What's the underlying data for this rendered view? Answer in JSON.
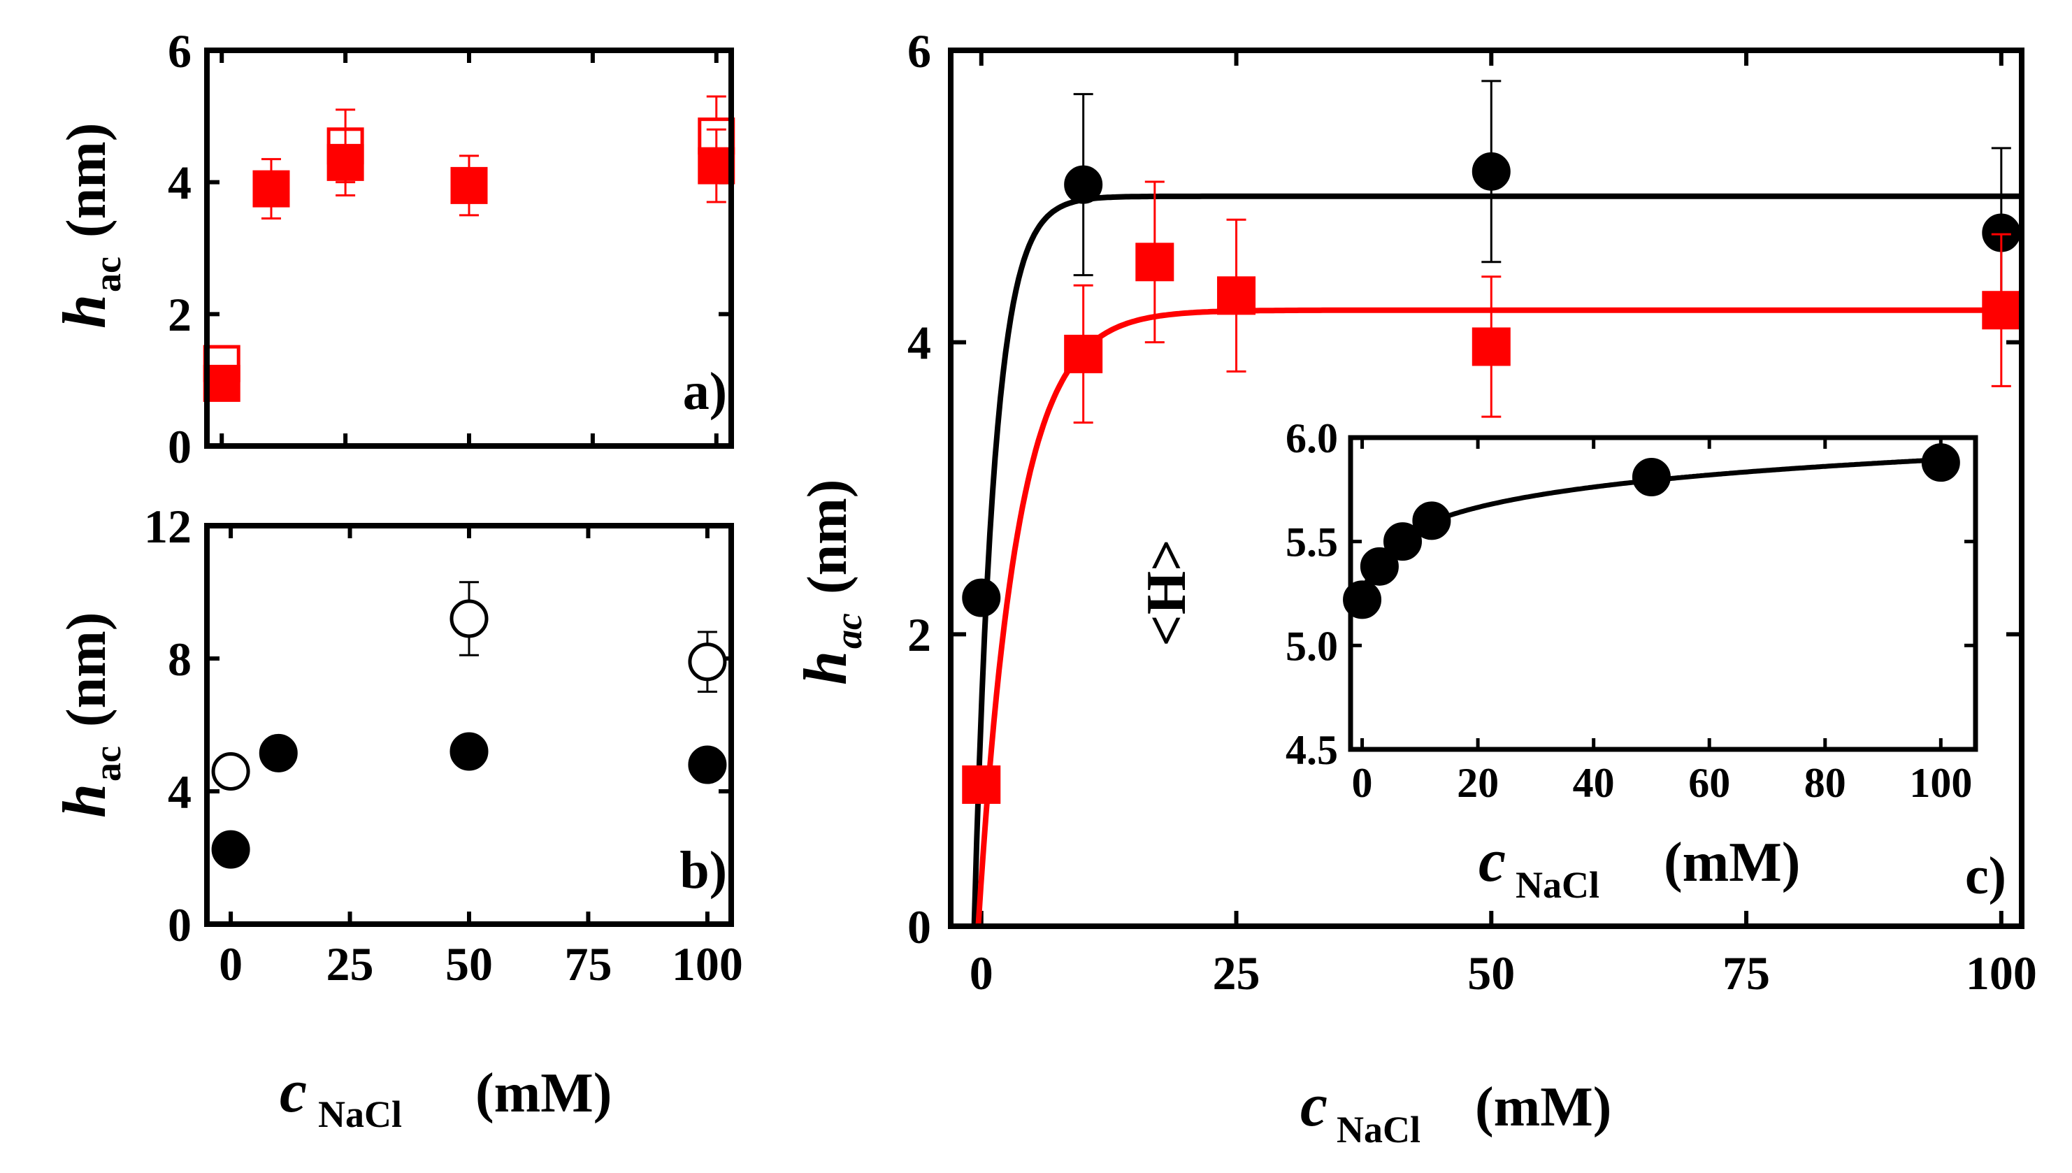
{
  "chart_data": [
    {
      "panel": "a",
      "type": "scatter",
      "panel_label": "a)",
      "ylabel_main": "h",
      "ylabel_sub": "ac",
      "ylabel_unit": "(nm)",
      "xlabel": "",
      "xlim": [
        -3,
        103
      ],
      "ylim": [
        0,
        6
      ],
      "yticks": [
        0,
        2,
        4,
        6
      ],
      "xticks": [
        0,
        25,
        50,
        75,
        100
      ],
      "show_xtick_labels": false,
      "series": [
        {
          "name": "open red squares",
          "marker": "square",
          "filled": false,
          "color": "#ff0000",
          "x": [
            0,
            25,
            100
          ],
          "y": [
            1.25,
            4.55,
            4.7
          ],
          "err": [
            0.25,
            0.55,
            0.6
          ]
        },
        {
          "name": "filled red squares",
          "marker": "square",
          "filled": true,
          "color": "#ff0000",
          "x": [
            0,
            10,
            25,
            50,
            100
          ],
          "y": [
            0.95,
            3.9,
            4.3,
            3.95,
            4.25
          ],
          "err": [
            0.0,
            0.45,
            0.5,
            0.45,
            0.55
          ]
        }
      ]
    },
    {
      "panel": "b",
      "type": "scatter",
      "panel_label": "b)",
      "ylabel_main": "h",
      "ylabel_sub": "ac",
      "ylabel_unit": "(nm)",
      "xlabel_main": "c",
      "xlabel_sub": "NaCl",
      "xlabel_unit": "(mM)",
      "xlim": [
        -5,
        105
      ],
      "ylim": [
        0,
        12
      ],
      "yticks": [
        0,
        4,
        8,
        12
      ],
      "xticks": [
        0,
        25,
        50,
        75,
        100
      ],
      "show_xtick_labels": true,
      "series": [
        {
          "name": "open black circles",
          "marker": "circle",
          "filled": false,
          "color": "#000000",
          "x": [
            0,
            50,
            100
          ],
          "y": [
            4.6,
            9.2,
            7.9
          ],
          "err": [
            0.3,
            1.1,
            0.9
          ]
        },
        {
          "name": "filled black circles",
          "marker": "circle",
          "filled": true,
          "color": "#000000",
          "x": [
            0,
            10,
            50,
            100
          ],
          "y": [
            2.25,
            5.15,
            5.2,
            4.8
          ],
          "err": [
            0.0,
            0.3,
            0.45,
            0.25
          ]
        }
      ]
    },
    {
      "panel": "c",
      "type": "scatter",
      "panel_label": "c)",
      "ylabel_main": "h",
      "ylabel_sub": "ac",
      "ylabel_unit": "(nm)",
      "xlabel_main": "c",
      "xlabel_sub": "NaCl",
      "xlabel_unit": "(mM)",
      "xlim": [
        -3,
        102
      ],
      "ylim": [
        0,
        6
      ],
      "yticks": [
        0,
        2,
        4,
        6
      ],
      "xticks": [
        0,
        25,
        50,
        75,
        100
      ],
      "series": [
        {
          "name": "black circles",
          "marker": "circle",
          "filled": true,
          "color": "#000000",
          "x": [
            0,
            10,
            50,
            100
          ],
          "y": [
            2.25,
            5.08,
            5.17,
            4.75
          ],
          "err": [
            0.0,
            0.62,
            0.62,
            0.58
          ]
        },
        {
          "name": "red squares",
          "marker": "square",
          "filled": true,
          "color": "#ff0000",
          "x": [
            0,
            10,
            17,
            25,
            50,
            100
          ],
          "y": [
            0.97,
            3.92,
            4.55,
            4.32,
            3.97,
            4.22
          ],
          "err": [
            0.0,
            0.47,
            0.55,
            0.52,
            0.48,
            0.52
          ]
        }
      ],
      "fits": [
        {
          "name": "black fit",
          "color": "#000000",
          "plateau": 5.0,
          "x0": -0.7,
          "tau": 2.0
        },
        {
          "name": "red fit",
          "color": "#ff0000",
          "plateau": 4.22,
          "x0": -0.3,
          "tau": 3.8
        }
      ],
      "inset": {
        "type": "scatter",
        "ylabel": "<H>",
        "xlabel_main": "c",
        "xlabel_sub": "NaCl",
        "xlabel_unit": "(mM)",
        "xlim": [
          -2,
          106
        ],
        "ylim": [
          4.5,
          6.0
        ],
        "yticks": [
          4.5,
          5.0,
          5.5,
          6.0
        ],
        "ytick_labels": [
          "4.5",
          "5.0",
          "5.5",
          "6.0"
        ],
        "xticks": [
          0,
          20,
          40,
          60,
          80,
          100
        ],
        "series": [
          {
            "name": "black circles",
            "marker": "circle",
            "filled": true,
            "color": "#000000",
            "x": [
              0,
              3,
              7,
              12,
              50,
              100
            ],
            "y": [
              5.22,
              5.38,
              5.5,
              5.6,
              5.81,
              5.88
            ]
          }
        ],
        "fit": {
          "name": "log fit",
          "color": "#000000",
          "a": 5.22,
          "b": 0.146,
          "c": 1.0
        }
      }
    }
  ]
}
